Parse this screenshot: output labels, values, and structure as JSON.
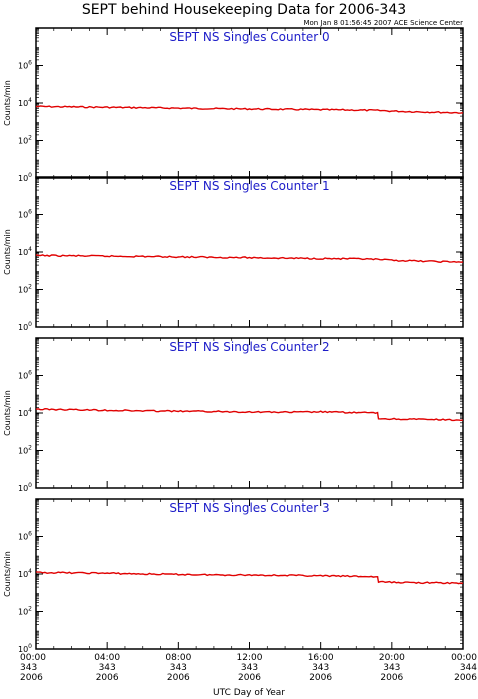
{
  "header": {
    "title": "SEPT behind Housekeeping Data for 2006-343",
    "timestamp": "Mon Jan  8 01:56:45 2007 ACE Science Center"
  },
  "chart_data": {
    "type": "line",
    "xlabel": "UTC Day of Year",
    "ylabel": "Counts/min",
    "xlim_hours": [
      0,
      24
    ],
    "ylog": true,
    "ylim": [
      1,
      100000000
    ],
    "y_ticks": [
      {
        "value": 1,
        "base": "10",
        "exp": "0"
      },
      {
        "value": 100,
        "base": "10",
        "exp": "2"
      },
      {
        "value": 10000,
        "base": "10",
        "exp": "4"
      },
      {
        "value": 1000000,
        "base": "10",
        "exp": "6"
      }
    ],
    "x_ticks": [
      {
        "hour": 0,
        "time": "00:00",
        "doy": "343",
        "year": "2006"
      },
      {
        "hour": 4,
        "time": "04:00",
        "doy": "343",
        "year": "2006"
      },
      {
        "hour": 8,
        "time": "08:00",
        "doy": "343",
        "year": "2006"
      },
      {
        "hour": 12,
        "time": "12:00",
        "doy": "343",
        "year": "2006"
      },
      {
        "hour": 16,
        "time": "16:00",
        "doy": "343",
        "year": "2006"
      },
      {
        "hour": 20,
        "time": "20:00",
        "doy": "343",
        "year": "2006"
      },
      {
        "hour": 24,
        "time": "00:00",
        "doy": "344",
        "year": "2006"
      }
    ],
    "series_color": "#e00000",
    "title_color": "#1c1cc8",
    "panels": [
      {
        "title": "SEPT NS Singles Counter 0",
        "x": [
          0,
          2,
          4,
          6,
          8,
          10,
          12,
          14,
          16,
          18,
          19.2,
          20,
          22,
          24
        ],
        "y": [
          6500,
          6200,
          5900,
          5600,
          5300,
          5000,
          4800,
          4600,
          4400,
          4200,
          4000,
          3700,
          3300,
          3000
        ]
      },
      {
        "title": "SEPT NS Singles Counter 1",
        "x": [
          0,
          2,
          4,
          6,
          8,
          10,
          12,
          14,
          16,
          18,
          19.2,
          20,
          22,
          24
        ],
        "y": [
          6500,
          6300,
          6000,
          5800,
          5500,
          5200,
          5000,
          4700,
          4500,
          4300,
          4000,
          3600,
          3200,
          2900
        ]
      },
      {
        "title": "SEPT NS Singles Counter 2",
        "x": [
          0,
          2,
          4,
          6,
          8,
          10,
          12,
          14,
          16,
          18,
          19.2,
          19.25,
          20,
          22,
          24
        ],
        "y": [
          16000,
          15000,
          14000,
          13000,
          12500,
          12000,
          11500,
          11000,
          11500,
          10500,
          10000,
          5000,
          4800,
          4500,
          4200
        ]
      },
      {
        "title": "SEPT NS Singles Counter 3",
        "x": [
          0,
          2,
          4,
          6,
          8,
          10,
          12,
          14,
          16,
          18,
          19.2,
          19.25,
          20,
          22,
          24
        ],
        "y": [
          12000,
          11500,
          11000,
          10000,
          9500,
          9000,
          8800,
          8500,
          8000,
          7500,
          7000,
          3800,
          3600,
          3400,
          3200
        ]
      }
    ]
  }
}
